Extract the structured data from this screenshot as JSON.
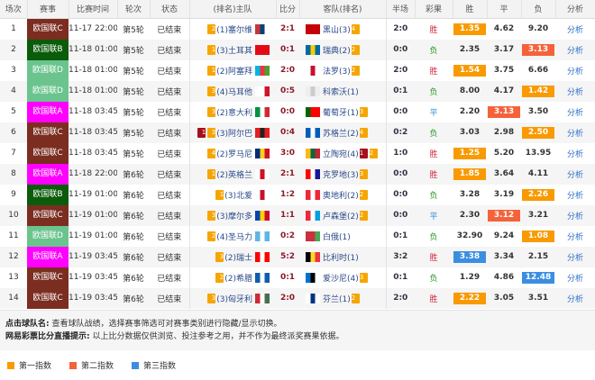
{
  "headers": [
    "场次",
    "赛事",
    "比赛时间",
    "轮次",
    "状态",
    "(排名)主队",
    "比分",
    "客队(排名)",
    "半场",
    "彩果",
    "胜",
    "平",
    "负",
    "分析"
  ],
  "league_colors": {
    "欧国联A": "#f0f",
    "欧国联B": "#0a5c0a",
    "欧国联C": "#7b2d20",
    "欧国联D": "#6bc48e"
  },
  "result_colors": {
    "胜": "#d0263a",
    "负": "#2a9a2a",
    "平": "#2a8ad0"
  },
  "highlight_colors": {
    "first": "#f99a00",
    "second": "#f5623a",
    "third": "#3b8ee0"
  },
  "rows": [
    {
      "no": "1",
      "league": "欧国联C",
      "time": "11-17 22:00",
      "round": "第5轮",
      "status": "已结束",
      "home_badges": [
        [
          "2",
          "y"
        ]
      ],
      "home": "(1)塞尔维",
      "home_flag": [
        "#c6363c",
        "#0c4076",
        "#fff"
      ],
      "score": "2:1",
      "away_flag": [
        "#c40308",
        "#c40308",
        "#c40308"
      ],
      "away": "黑山(3)",
      "away_badges": [
        [
          "4",
          "y"
        ]
      ],
      "half": "2:0",
      "result": "胜",
      "odds": [
        "1.35",
        "4.62",
        "9.20"
      ],
      "hl": [
        0,
        "first"
      ],
      "analysis": "分析"
    },
    {
      "no": "2",
      "league": "欧国联B",
      "time": "11-18 01:00",
      "round": "第5轮",
      "status": "已结束",
      "home_badges": [
        [
          "1",
          "y"
        ]
      ],
      "home": "(3)土耳其",
      "home_flag": [
        "#e30a17",
        "#e30a17",
        "#e30a17"
      ],
      "score": "0:1",
      "away_flag": [
        "#006aa7",
        "#fecc00",
        "#006aa7"
      ],
      "away": "瑞典(2)",
      "away_badges": [
        [
          "2",
          "y"
        ]
      ],
      "half": "0:0",
      "result": "负",
      "odds": [
        "2.35",
        "3.17",
        "3.13"
      ],
      "hl": [
        2,
        "second"
      ],
      "analysis": "分析"
    },
    {
      "no": "3",
      "league": "欧国联D",
      "time": "11-18 01:00",
      "round": "第5轮",
      "status": "已结束",
      "home_badges": [
        [
          "1",
          "y"
        ]
      ],
      "home": "(2)阿塞拜",
      "home_flag": [
        "#00b5e2",
        "#ef3340",
        "#509e2f"
      ],
      "score": "2:0",
      "away_flag": [
        "#fff",
        "#c8102e",
        "#fff"
      ],
      "away": "法罗(3)",
      "away_badges": [
        [
          "2",
          "y"
        ]
      ],
      "half": "2:0",
      "result": "胜",
      "odds": [
        "1.54",
        "3.75",
        "6.66"
      ],
      "hl": [
        0,
        "first"
      ],
      "analysis": "分析"
    },
    {
      "no": "4",
      "league": "欧国联D",
      "time": "11-18 01:00",
      "round": "第5轮",
      "status": "已结束",
      "home_badges": [
        [
          "3",
          "y"
        ]
      ],
      "home": "(4)马耳他",
      "home_flag": [
        "#fff",
        "#fff",
        "#cf142b"
      ],
      "score": "0:5",
      "away_flag": [
        "#eee",
        "#ccc",
        "#eee"
      ],
      "away": "科索沃(1)",
      "away_badges": [],
      "half": "0:1",
      "result": "负",
      "odds": [
        "8.00",
        "4.17",
        "1.42"
      ],
      "hl": [
        2,
        "first"
      ],
      "analysis": "分析"
    },
    {
      "no": "5",
      "league": "欧国联A",
      "time": "11-18 03:45",
      "round": "第5轮",
      "status": "已结束",
      "home_badges": [
        [
          "3",
          "y"
        ]
      ],
      "home": "(2)意大利",
      "home_flag": [
        "#009246",
        "#fff",
        "#ce2b37"
      ],
      "score": "0:0",
      "away_flag": [
        "#006600",
        "#ff0000",
        "#ff0000"
      ],
      "away": "葡萄牙(1)",
      "away_badges": [
        [
          "3",
          "y"
        ]
      ],
      "half": "0:0",
      "result": "平",
      "odds": [
        "2.20",
        "3.13",
        "3.50"
      ],
      "hl": [
        1,
        "second"
      ],
      "analysis": "分析"
    },
    {
      "no": "6",
      "league": "欧国联C",
      "time": "11-18 03:45",
      "round": "第5轮",
      "status": "已结束",
      "home_badges": [
        [
          "1",
          "r"
        ],
        [
          "3",
          "y"
        ]
      ],
      "home": "(3)阿尔巴",
      "home_flag": [
        "#e41e20",
        "#222",
        "#e41e20"
      ],
      "score": "0:4",
      "away_flag": [
        "#005eb8",
        "#fff",
        "#005eb8"
      ],
      "away": "苏格兰(2)",
      "away_badges": [
        [
          "4",
          "y"
        ]
      ],
      "half": "0:2",
      "result": "负",
      "odds": [
        "3.03",
        "2.98",
        "2.50"
      ],
      "hl": [
        2,
        "first"
      ],
      "analysis": "分析"
    },
    {
      "no": "7",
      "league": "欧国联C",
      "time": "11-18 03:45",
      "round": "第5轮",
      "status": "已结束",
      "home_badges": [
        [
          "4",
          "y"
        ]
      ],
      "home": "(2)罗马尼",
      "home_flag": [
        "#002b7f",
        "#fcd116",
        "#ce1126"
      ],
      "score": "3:0",
      "away_flag": [
        "#fdb913",
        "#006a44",
        "#c1272d"
      ],
      "away": "立陶宛(4)",
      "away_badges": [
        [
          "1",
          "r"
        ],
        [
          "2",
          "y"
        ]
      ],
      "half": "1:0",
      "result": "胜",
      "odds": [
        "1.25",
        "5.20",
        "13.95"
      ],
      "hl": [
        0,
        "first"
      ],
      "analysis": "分析"
    },
    {
      "no": "8",
      "league": "欧国联A",
      "time": "11-18 22:00",
      "round": "第6轮",
      "status": "已结束",
      "home_badges": [
        [
          "1",
          "y"
        ]
      ],
      "home": "(2)英格兰",
      "home_flag": [
        "#fff",
        "#ce1124",
        "#fff"
      ],
      "score": "2:1",
      "away_flag": [
        "#ff0000",
        "#fff",
        "#171796"
      ],
      "away": "克罗地(3)",
      "away_badges": [
        [
          "3",
          "y"
        ]
      ],
      "half": "0:0",
      "result": "胜",
      "odds": [
        "1.85",
        "3.64",
        "4.11"
      ],
      "hl": [
        0,
        "first"
      ],
      "analysis": "分析"
    },
    {
      "no": "9",
      "league": "欧国联B",
      "time": "11-19 01:00",
      "round": "第6轮",
      "status": "已结束",
      "home_badges": [
        [
          "1",
          "y"
        ]
      ],
      "home": "(3)北爱",
      "home_flag": [
        "#fff",
        "#c8102e",
        "#fff"
      ],
      "score": "1:2",
      "away_flag": [
        "#ed2939",
        "#fff",
        "#ed2939"
      ],
      "away": "奥地利(2)",
      "away_badges": [
        [
          "2",
          "y"
        ]
      ],
      "half": "0:0",
      "result": "负",
      "odds": [
        "3.28",
        "3.19",
        "2.26"
      ],
      "hl": [
        2,
        "first"
      ],
      "analysis": "分析"
    },
    {
      "no": "10",
      "league": "欧国联C",
      "time": "11-19 01:00",
      "round": "第6轮",
      "status": "已结束",
      "home_badges": [
        [
          "3",
          "y"
        ]
      ],
      "home": "(3)摩尔多",
      "home_flag": [
        "#0046ae",
        "#ffd200",
        "#cc092f"
      ],
      "score": "1:1",
      "away_flag": [
        "#ed2939",
        "#fff",
        "#00a1de"
      ],
      "away": "卢森堡(2)",
      "away_badges": [
        [
          "2",
          "y"
        ]
      ],
      "half": "0:0",
      "result": "平",
      "odds": [
        "2.30",
        "3.12",
        "3.21"
      ],
      "hl": [
        1,
        "second"
      ],
      "analysis": "分析"
    },
    {
      "no": "11",
      "league": "欧国联D",
      "time": "11-19 01:00",
      "round": "第6轮",
      "status": "已结束",
      "home_badges": [
        [
          "2",
          "y"
        ]
      ],
      "home": "(4)圣马力",
      "home_flag": [
        "#5eb6e4",
        "#fff",
        "#5eb6e4"
      ],
      "score": "0:2",
      "away_flag": [
        "#c8313e",
        "#c8313e",
        "#4aa657"
      ],
      "away": "白俄(1)",
      "away_badges": [],
      "half": "0:1",
      "result": "负",
      "odds": [
        "32.90",
        "9.24",
        "1.08"
      ],
      "hl": [
        2,
        "first"
      ],
      "analysis": "分析"
    },
    {
      "no": "12",
      "league": "欧国联A",
      "time": "11-19 03:45",
      "round": "第6轮",
      "status": "已结束",
      "home_badges": [
        [
          "3",
          "y"
        ]
      ],
      "home": "(2)瑞士",
      "home_flag": [
        "#ff0000",
        "#fff",
        "#ff0000"
      ],
      "score": "5:2",
      "away_flag": [
        "#000",
        "#fdda24",
        "#ef3340"
      ],
      "away": "比利时(1)",
      "away_badges": [],
      "half": "3:2",
      "result": "胜",
      "odds": [
        "3.38",
        "3.34",
        "2.15"
      ],
      "hl": [
        0,
        "third"
      ],
      "analysis": "分析"
    },
    {
      "no": "13",
      "league": "欧国联C",
      "time": "11-19 03:45",
      "round": "第6轮",
      "status": "已结束",
      "home_badges": [
        [
          "2",
          "y"
        ]
      ],
      "home": "(2)希腊",
      "home_flag": [
        "#0d5eaf",
        "#fff",
        "#0d5eaf"
      ],
      "score": "0:1",
      "away_flag": [
        "#0072ce",
        "#000",
        "#fff"
      ],
      "away": "爱沙尼(4)",
      "away_badges": [
        [
          "3",
          "y"
        ]
      ],
      "half": "0:1",
      "result": "负",
      "odds": [
        "1.29",
        "4.86",
        "12.48"
      ],
      "hl": [
        2,
        "third"
      ],
      "analysis": "分析"
    },
    {
      "no": "14",
      "league": "欧国联C",
      "time": "11-19 03:45",
      "round": "第6轮",
      "status": "已结束",
      "home_badges": [
        [
          "3",
          "y"
        ]
      ],
      "home": "(3)匈牙利",
      "home_flag": [
        "#ce2939",
        "#fff",
        "#477050"
      ],
      "score": "2:0",
      "away_flag": [
        "#fff",
        "#003580",
        "#fff"
      ],
      "away": "芬兰(1)",
      "away_badges": [
        [
          "2",
          "y"
        ]
      ],
      "half": "2:0",
      "result": "胜",
      "odds": [
        "2.22",
        "3.05",
        "3.51"
      ],
      "hl": [
        0,
        "first"
      ],
      "analysis": "分析"
    }
  ],
  "notes": {
    "l1_label": "点击球队名:",
    "l1_text": " 查看球队战绩，选择赛事筛选可对赛事类别进行隐藏/显示切换。",
    "l2_label": "网易彩票比分直播提示:",
    "l2_text": " 以上比分数据仅供浏览、投注参考之用，并不作为最终派奖赛果依据。"
  },
  "legend": [
    {
      "label": "第一指数",
      "color": "#f99a00"
    },
    {
      "label": "第二指数",
      "color": "#f5623a"
    },
    {
      "label": "第三指数",
      "color": "#3b8ee0"
    }
  ]
}
